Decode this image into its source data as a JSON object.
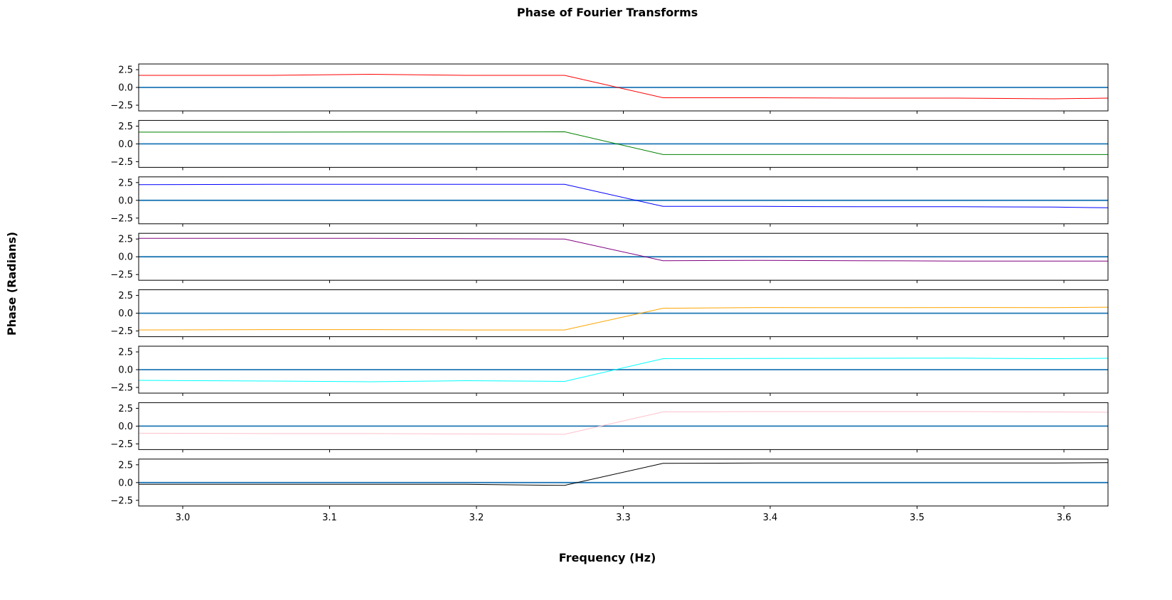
{
  "chart_data": {
    "type": "line",
    "title": "Phase of Fourier Transforms",
    "xlabel": "Frequency (Hz)",
    "ylabel": "Phase (Radians)",
    "xlim": [
      2.97,
      3.63
    ],
    "ylim": [
      -3.3,
      3.3
    ],
    "xticks": [
      {
        "value": 3.0,
        "label": "3.0"
      },
      {
        "value": 3.1,
        "label": "3.1"
      },
      {
        "value": 3.2,
        "label": "3.2"
      },
      {
        "value": 3.3,
        "label": "3.3"
      },
      {
        "value": 3.4,
        "label": "3.4"
      },
      {
        "value": 3.5,
        "label": "3.5"
      },
      {
        "value": 3.6,
        "label": "3.6"
      }
    ],
    "yticks": [
      {
        "value": 2.5,
        "label": "2.5"
      },
      {
        "value": 0.0,
        "label": "0.0"
      },
      {
        "value": -2.5,
        "label": "−2.5"
      }
    ],
    "zero_line_color": "#1f77b4",
    "x": [
      2.97,
      3.06,
      3.127,
      3.193,
      3.26,
      3.327,
      3.393,
      3.46,
      3.527,
      3.593,
      3.63
    ],
    "panels": [
      {
        "color": "#ff0000",
        "values": [
          1.7,
          1.7,
          1.85,
          1.7,
          1.7,
          -1.45,
          -1.45,
          -1.5,
          -1.5,
          -1.6,
          -1.5
        ]
      },
      {
        "color": "#008000",
        "values": [
          1.65,
          1.65,
          1.68,
          1.68,
          1.7,
          -1.5,
          -1.5,
          -1.5,
          -1.5,
          -1.5,
          -1.5
        ]
      },
      {
        "color": "#0000ff",
        "values": [
          2.2,
          2.25,
          2.25,
          2.25,
          2.25,
          -0.85,
          -0.85,
          -0.9,
          -0.9,
          -0.95,
          -1.05
        ]
      },
      {
        "color": "#800080",
        "values": [
          2.6,
          2.6,
          2.6,
          2.55,
          2.5,
          -0.55,
          -0.5,
          -0.55,
          -0.6,
          -0.6,
          -0.6
        ]
      },
      {
        "color": "#ffa500",
        "values": [
          -2.35,
          -2.3,
          -2.3,
          -2.35,
          -2.35,
          0.7,
          0.8,
          0.78,
          0.8,
          0.78,
          0.85
        ]
      },
      {
        "color": "#00ffff",
        "values": [
          -1.5,
          -1.6,
          -1.7,
          -1.55,
          -1.65,
          1.55,
          1.58,
          1.6,
          1.62,
          1.55,
          1.6
        ]
      },
      {
        "color": "#ffc0cb",
        "values": [
          -1.0,
          -1.05,
          -1.05,
          -1.1,
          -1.15,
          2.0,
          2.05,
          2.05,
          2.05,
          2.0,
          1.95
        ]
      },
      {
        "color": "#000000",
        "values": [
          -0.25,
          -0.25,
          -0.25,
          -0.25,
          -0.4,
          2.7,
          2.75,
          2.75,
          2.75,
          2.75,
          2.8
        ]
      }
    ]
  }
}
